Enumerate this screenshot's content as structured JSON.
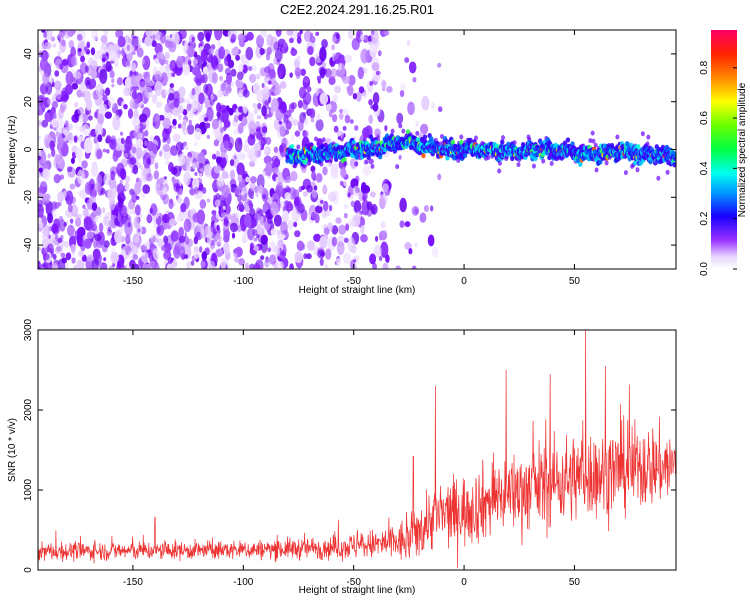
{
  "title": "C2E2.2024.291.16.25.R01",
  "chart_data": [
    {
      "type": "heatmap",
      "name": "spectrogram",
      "title": "C2E2.2024.291.16.25.R01",
      "xlabel": "Height of straight line (km)",
      "ylabel": "Frequency (Hz)",
      "xlim": [
        -193,
        96
      ],
      "ylim": [
        -50,
        50
      ],
      "x_ticks": [
        -150,
        -100,
        -50,
        0,
        50
      ],
      "y_ticks": [
        -40,
        -20,
        0,
        20,
        40
      ],
      "ridge": {
        "description_points_x": [
          -80,
          -70,
          -60,
          -50,
          -40,
          -30,
          -20,
          -10,
          0,
          10,
          20,
          30,
          40,
          50,
          60,
          70,
          80,
          95
        ],
        "description_points_y": [
          -3,
          -2,
          -1,
          0,
          1,
          3,
          2,
          0,
          0,
          0,
          -1,
          0,
          0,
          -1,
          -2,
          -1,
          -2,
          -3
        ]
      },
      "noise_region_x": [
        -193,
        -35
      ],
      "colorbar": {
        "label": "Normalized spectral amplitude",
        "range": [
          0.0,
          0.95
        ],
        "ticks": [
          0.0,
          0.2,
          0.4,
          0.6,
          0.8
        ],
        "tick_labels": [
          "0.0",
          "0.2",
          "0.4",
          "0.6",
          "0.8"
        ]
      }
    },
    {
      "type": "line",
      "name": "snr",
      "xlabel": "Height of straight line (km)",
      "ylabel": "SNR (10 * v/v)",
      "xlim": [
        -193,
        96
      ],
      "ylim": [
        0,
        3000
      ],
      "x_ticks": [
        -150,
        -100,
        -50,
        0,
        50
      ],
      "y_ticks": [
        0,
        1000,
        2000,
        3000
      ],
      "color": "#ee3333",
      "envelope_x": [
        -193,
        -150,
        -100,
        -60,
        -40,
        -25,
        -15,
        0,
        20,
        40,
        60,
        80,
        96
      ],
      "envelope_mean": [
        230,
        240,
        250,
        280,
        320,
        360,
        650,
        750,
        950,
        1100,
        1200,
        1300,
        1300
      ],
      "envelope_spread": [
        110,
        110,
        110,
        140,
        180,
        280,
        380,
        430,
        480,
        520,
        520,
        520,
        420
      ],
      "peaks": [
        {
          "x": -140,
          "y": 660
        },
        {
          "x": -23,
          "y": 1420
        },
        {
          "x": -13,
          "y": 2300
        },
        {
          "x": 19,
          "y": 2500
        },
        {
          "x": 39,
          "y": 2450
        },
        {
          "x": 55,
          "y": 3000
        },
        {
          "x": 64,
          "y": 2550
        }
      ]
    }
  ]
}
